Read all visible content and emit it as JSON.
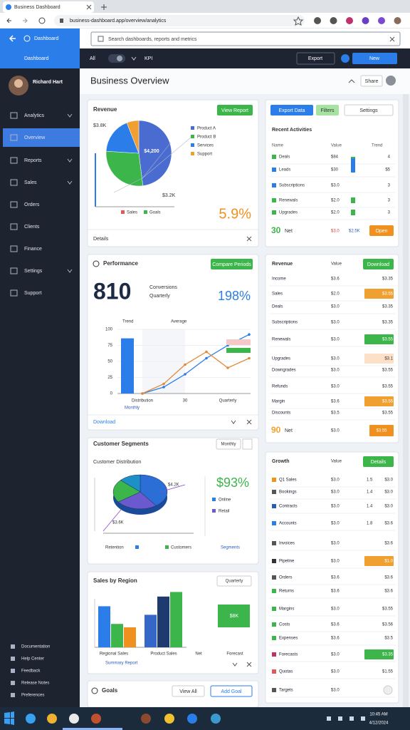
{
  "browser": {
    "tab_title": "Business Dashboard",
    "url": "business-dashboard.app/overview/analytics"
  },
  "app": {
    "brand": "Dashboard",
    "search_placeholder": "Search dashboards, reports and metrics",
    "nav_active": "Dashboard",
    "toolbar_select": "All",
    "toolbar_label": "KPI",
    "toolbar_buttons": [
      "Export",
      "New"
    ]
  },
  "user": {
    "name": "Richard Hart"
  },
  "sidebar": {
    "items": [
      "Analytics",
      "Overview",
      "Reports",
      "Sales",
      "Orders",
      "Clients",
      "Finance",
      "Settings",
      "Support"
    ],
    "active": 1,
    "footer": [
      "Documentation",
      "Help Center",
      "Feedback",
      "Release Notes",
      "Preferences"
    ]
  },
  "page": {
    "title": "Business Overview",
    "button": "Share"
  },
  "revenue": {
    "title": "Revenue",
    "button": "View Report",
    "top_label": "$3.8K",
    "slices": [
      {
        "name": "Product A",
        "value": 48,
        "color": "#4a6bd0"
      },
      {
        "name": "Product B",
        "value": 28,
        "color": "#3cb54a"
      },
      {
        "name": "Services",
        "value": 18,
        "color": "#2b7de9"
      },
      {
        "name": "Support",
        "value": 6,
        "color": "#f0a030"
      }
    ],
    "slice_label": "$4,200",
    "bottom_label": "$3.2K",
    "legend_bottom": [
      {
        "name": "Sales",
        "color": "#e05a5a"
      },
      {
        "name": "Goals",
        "color": "#3cb54a"
      }
    ],
    "value": "5.9%",
    "footer": "Details"
  },
  "performance": {
    "title": "Performance",
    "button": "Compare Periods",
    "big_value": "810",
    "sub_labels": [
      "Conversions",
      "Quarterly"
    ],
    "pct": "198%",
    "chart_title": "Trend",
    "chart_subtitle": "Average",
    "ylim": [
      0,
      100
    ],
    "yticks": [
      0,
      25,
      50,
      75,
      100
    ],
    "categories": [
      "Distribution",
      null,
      "30",
      null,
      "Quarterly",
      null
    ],
    "bar": {
      "value": 86,
      "color": "#2b7de9"
    },
    "series": [
      {
        "color": "#2b7de9",
        "values": [
          0,
          10,
          30,
          55,
          75,
          92
        ]
      },
      {
        "color": "#e08a3a",
        "values": [
          0,
          15,
          45,
          65,
          40,
          55
        ]
      }
    ],
    "x_note": "Monthly",
    "footer": "Download"
  },
  "segments": {
    "title": "Customer Segments",
    "select": "Monthly",
    "chart_title": "Customer Distribution",
    "slices": [
      {
        "value": 40,
        "color": "#2b6fd6"
      },
      {
        "value": 25,
        "color": "#6a5acd"
      },
      {
        "value": 22,
        "color": "#3cb54a"
      },
      {
        "value": 13,
        "color": "#1e90c8"
      }
    ],
    "label_a": "$4.2K",
    "label_b": "$3.6K",
    "value": "$93%",
    "legend": [
      {
        "name": "Online",
        "color": "#2b7de9"
      },
      {
        "name": "Retail",
        "color": "#6a5acd"
      }
    ],
    "bottom": [
      "Retention",
      "Customers",
      "Segments"
    ]
  },
  "regional": {
    "title": "Sales by Region",
    "select": "Quarterly",
    "ylim": [
      0,
      100
    ],
    "series": [
      {
        "colors": [
          "#2b7de9",
          "#3567c8"
        ],
        "values": [
          72,
          57
        ]
      },
      {
        "colors": [
          "#3cb54a",
          "#1f3a6e"
        ],
        "values": [
          41,
          89
        ]
      },
      {
        "colors": [
          "#f0901e",
          "#3cb54a"
        ],
        "values": [
          35,
          97
        ]
      }
    ],
    "box": "$8K",
    "x_labels": [
      "Regional Sales",
      "Product Sales",
      "Net",
      "Forecast"
    ],
    "footer": "Summary Report"
  },
  "goals": {
    "title": "Goals",
    "buttons": [
      "View All",
      "Add Goal"
    ]
  },
  "activities": {
    "buttons": [
      "Export Data",
      "Filters",
      "Settings"
    ],
    "title": "Recent Activities",
    "columns": [
      "Name",
      "Value",
      "Trend"
    ],
    "rows": [
      {
        "label": "Deals",
        "value": "$84",
        "trend": 2,
        "color": "#3cb54a",
        "end": "4"
      },
      {
        "label": "Leads",
        "value": "$30",
        "trend": 10,
        "color": "#2b7de9",
        "end": "$5"
      },
      {
        "label": "Subscriptions",
        "value": "$3.0",
        "trend": 0,
        "color": "#2b7de9",
        "end": "3"
      },
      {
        "label": "Renewals",
        "value": "$2.0",
        "trend": 4,
        "color": "#3cb54a",
        "end": "3"
      },
      {
        "label": "Upgrades",
        "value": "$2.0",
        "trend": 4,
        "color": "#3cb54a",
        "end": "3"
      }
    ],
    "footer": {
      "count": "30",
      "label": "Net",
      "values": [
        "$3.0",
        "$2.5K"
      ],
      "button": "Open"
    }
  },
  "revenue_table": {
    "title": "Revenue",
    "column": "Value",
    "button": "Download",
    "rows": [
      {
        "label": "Income",
        "cells": [
          "$3.6",
          "$3.35"
        ]
      },
      {
        "label": "Sales",
        "cells": [
          "$2.0",
          "$3.55"
        ],
        "badge_color": "#f0a030"
      },
      {
        "label": "Deals",
        "cells": [
          "$3.0",
          "$3.35"
        ]
      },
      {
        "label": "Subscriptions",
        "cells": [
          "$3.0",
          "$3.35"
        ]
      },
      {
        "label": "Renewals",
        "cells": [
          "$3.0",
          "$3.55"
        ],
        "badge_color": "#3cb54a"
      },
      {
        "label": "Upgrades",
        "cells": [
          "$3.0",
          "$3.1"
        ],
        "badge_color": "#fde0c8"
      },
      {
        "label": "Downgrades",
        "cells": [
          "$3.0",
          "$3.55"
        ]
      },
      {
        "label": "Refunds",
        "cells": [
          "$3.0",
          "$3.55"
        ]
      },
      {
        "label": "Margin",
        "cells": [
          "$3.6",
          "$3.55"
        ],
        "badge_color": "#f0a030"
      },
      {
        "label": "Discounts",
        "cells": [
          "$3.5",
          "$3.55"
        ]
      }
    ],
    "footer": {
      "count": "90",
      "label": "Net",
      "value": "$3.0",
      "badge": "$3.55"
    }
  },
  "growth": {
    "title": "Growth",
    "column": "Value",
    "button": "Details",
    "rows": [
      {
        "label": "Q1 Sales",
        "cells": [
          "$3.0",
          "1.5",
          "$3.0"
        ],
        "color": "#f0901e"
      },
      {
        "label": "Bookings",
        "cells": [
          "$3.0",
          "1.4",
          "$3.0"
        ],
        "color": "#555"
      },
      {
        "label": "Contracts",
        "cells": [
          "$3.0",
          "1.4",
          "$3.0"
        ],
        "color": "#2b5cb8"
      },
      {
        "label": "Accounts",
        "cells": [
          "$3.0",
          "1.8",
          "$3.6"
        ],
        "color": "#2b7de9"
      },
      {
        "label": "Invoices",
        "cells": [
          "$3.0",
          "$3.6"
        ],
        "color": "#555"
      },
      {
        "label": "Pipeline",
        "cells": [
          "$3.0",
          "$1.0"
        ],
        "color": "#333",
        "badge_color": "#f0a030"
      },
      {
        "label": "Orders",
        "cells": [
          "$3.6",
          "$3.6"
        ],
        "color": "#555"
      },
      {
        "label": "Returns",
        "cells": [
          "$3.6",
          "$3.6"
        ],
        "color": "#3cb54a"
      },
      {
        "label": "Margins",
        "cells": [
          "$3.0",
          "$3.55"
        ],
        "color": "#3cb54a"
      },
      {
        "label": "Costs",
        "cells": [
          "$3.6",
          "$3.56"
        ],
        "color": "#3cb54a"
      },
      {
        "label": "Expenses",
        "cells": [
          "$3.6",
          "$3.5"
        ],
        "color": "#3cb54a"
      },
      {
        "label": "Forecasts",
        "cells": [
          "$3.0",
          "$3.35"
        ],
        "color": "#c0306a",
        "badge_color": "#3cb54a"
      },
      {
        "label": "Quotas",
        "cells": [
          "$3.0",
          "$1.55"
        ],
        "color": "#e05a5a"
      },
      {
        "label": "Targets",
        "cells": [
          "$3.0"
        ],
        "color": "#555"
      }
    ]
  },
  "taskbar": {
    "time": "10:45 AM",
    "date": "4/12/2024"
  }
}
